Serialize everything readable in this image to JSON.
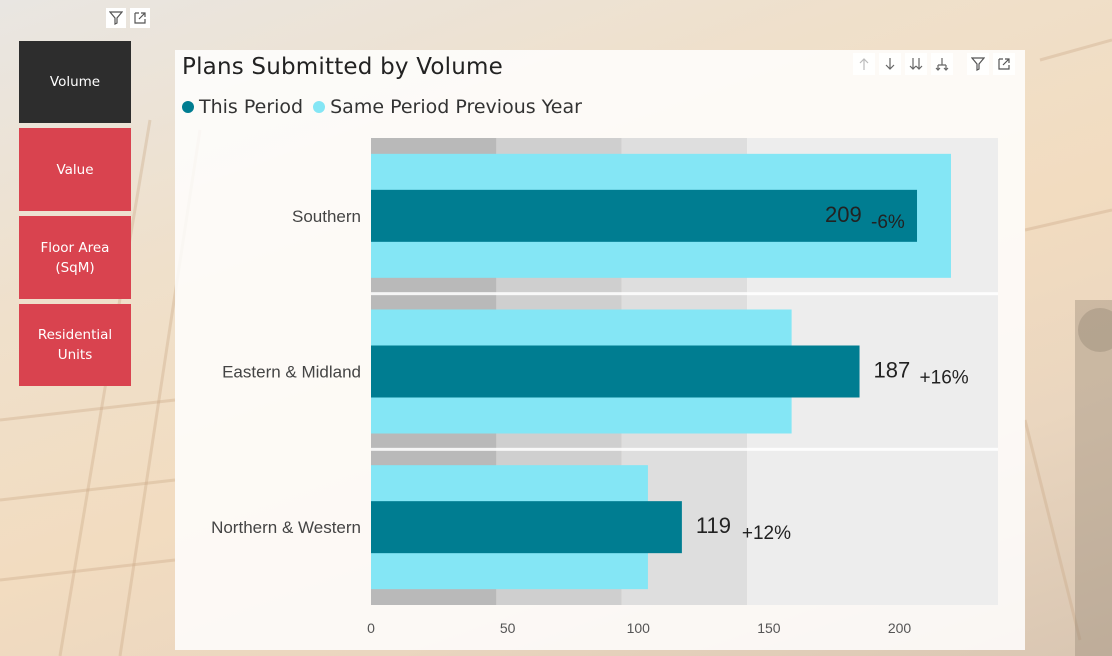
{
  "slicer": {
    "items": [
      {
        "label": "Volume",
        "selected": true,
        "color": "#2d2d2d"
      },
      {
        "label": "Value",
        "selected": false,
        "color": "#d9434f"
      },
      {
        "label": "Floor Area\n(SqM)",
        "selected": false,
        "color": "#d9434f"
      },
      {
        "label": "Residential\nUnits",
        "selected": false,
        "color": "#d9434f"
      }
    ]
  },
  "icons": {
    "slicer_header": [
      "filter-icon",
      "focus-mode-icon"
    ],
    "visual_header": [
      "drill-up-icon",
      "drill-down-icon",
      "expand-next-level-icon",
      "expand-hierarchy-icon",
      "filter-icon",
      "focus-mode-icon"
    ]
  },
  "chart_data": {
    "type": "bar",
    "orientation": "horizontal",
    "title": "Plans Submitted by Volume",
    "categories": [
      "Southern",
      "Eastern & Midland",
      "Northern & Western"
    ],
    "series": [
      {
        "name": "This Period",
        "values": [
          209,
          187,
          119
        ],
        "color": "#007d91"
      },
      {
        "name": "Same Period Previous Year",
        "values": [
          222,
          161,
          106
        ],
        "color": "#84e6f5"
      }
    ],
    "change_labels": [
      "-6%",
      "+16%",
      "+12%"
    ],
    "xlim": [
      0,
      240
    ],
    "xticks": [
      0,
      50,
      100,
      150,
      200
    ],
    "bands": [
      {
        "to": 48,
        "color": "#b9b9b9"
      },
      {
        "to": 96,
        "color": "#cfcfcf"
      },
      {
        "to": 144,
        "color": "#dedede"
      },
      {
        "to": 240,
        "color": "#ededed"
      }
    ],
    "legend_position": "top-left",
    "grid": false
  }
}
